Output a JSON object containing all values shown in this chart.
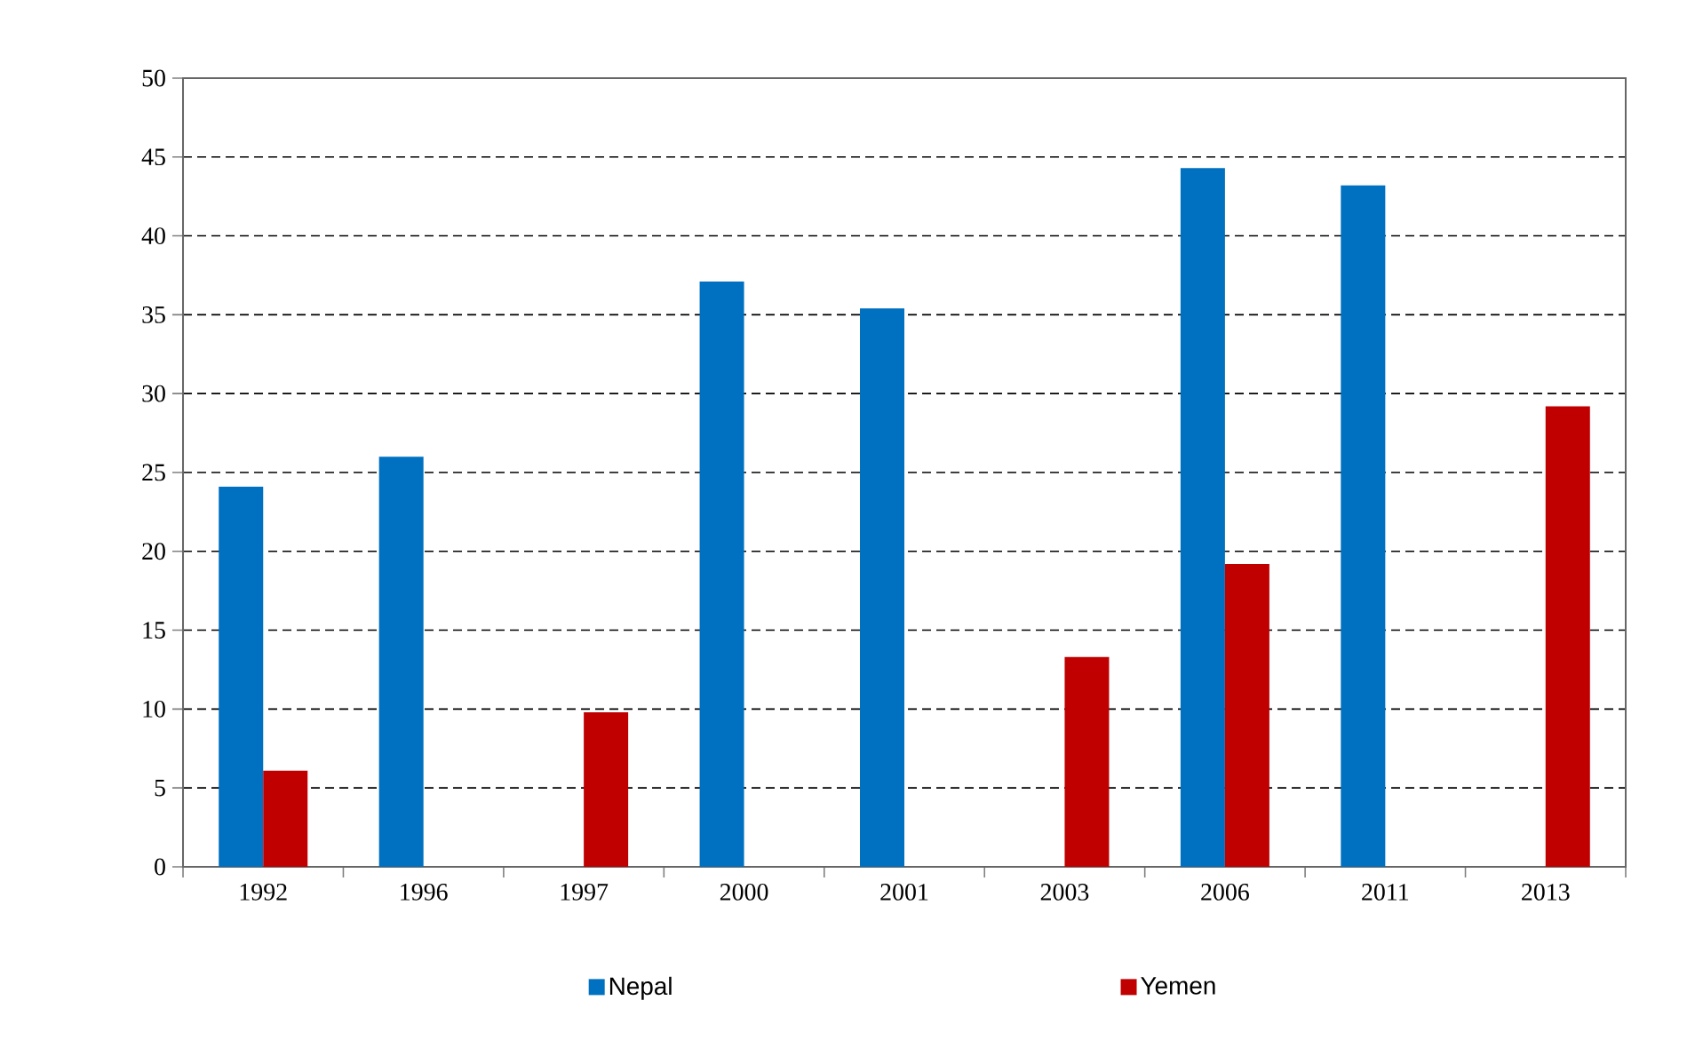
{
  "chart_data": {
    "type": "bar",
    "categories": [
      "1992",
      "1996",
      "1997",
      "2000",
      "2001",
      "2003",
      "2006",
      "2011",
      "2013"
    ],
    "series": [
      {
        "name": "Nepal",
        "color": "#0070c0",
        "values": [
          24.1,
          26.0,
          null,
          37.1,
          35.4,
          null,
          44.3,
          43.2,
          null
        ]
      },
      {
        "name": "Yemen",
        "color": "#c00000",
        "values": [
          6.1,
          null,
          9.8,
          null,
          null,
          13.3,
          19.2,
          null,
          29.2
        ]
      }
    ],
    "ylim": [
      0,
      50
    ],
    "yticks": [
      0,
      5,
      10,
      15,
      20,
      25,
      30,
      35,
      40,
      45,
      50
    ],
    "grid": "y",
    "legend": "bottom"
  }
}
